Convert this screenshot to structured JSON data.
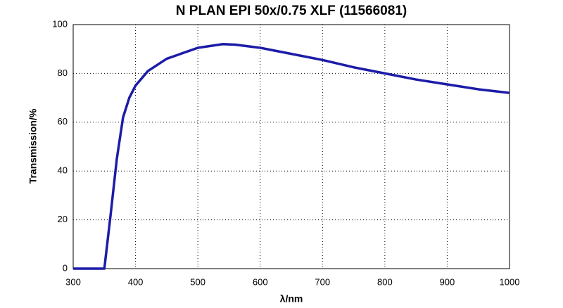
{
  "chart_data": {
    "type": "line",
    "title": "N PLAN EPI 50x/0.75 XLF (11566081)",
    "x_label": "λ/nm",
    "y_label": "Transmission/%",
    "x": [
      300,
      350,
      360,
      370,
      380,
      390,
      400,
      420,
      450,
      500,
      540,
      560,
      600,
      650,
      700,
      750,
      800,
      850,
      900,
      950,
      1000
    ],
    "series": [
      {
        "color": "#1c1ca8",
        "values": [
          0,
          0,
          22,
          45,
          62,
          70,
          75,
          81,
          86,
          90.5,
          92,
          91.8,
          90.5,
          88,
          85.5,
          82.5,
          80,
          77.5,
          75.5,
          73.5,
          72
        ]
      }
    ],
    "xlim": [
      300,
      1000
    ],
    "xticks": [
      300,
      400,
      500,
      600,
      700,
      800,
      900,
      1000
    ],
    "ylim": [
      0,
      100
    ],
    "yticks": [
      0,
      20,
      40,
      60,
      80,
      100
    ],
    "grid": true
  }
}
